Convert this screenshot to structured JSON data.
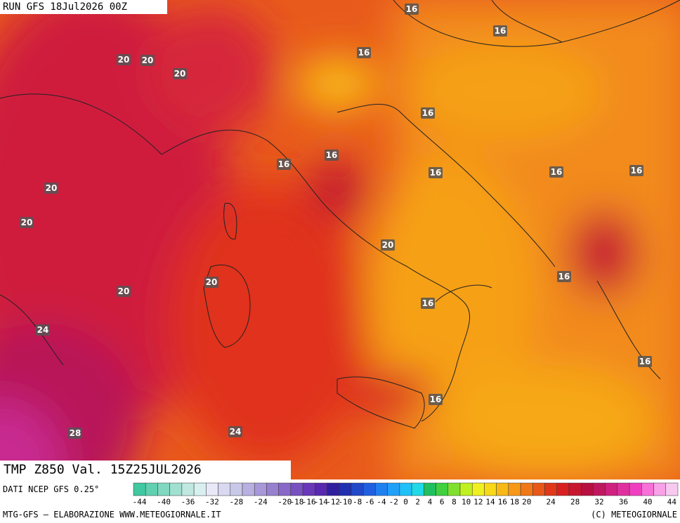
{
  "header": {
    "run": "RUN GFS 18Jul2026 00Z"
  },
  "title": "TMP Z850 Val. 15Z25JUL2026",
  "source": "DATI NCEP GFS 0.25°",
  "footer_left": "MTG-GFS — ELABORAZIONE WWW.METEOGIORNALE.IT",
  "footer_right": "(C) METEOGIORNALE",
  "contour_labels": [
    "16",
    "16",
    "16",
    "20",
    "20",
    "20",
    "16",
    "16",
    "16",
    "16",
    "16",
    "16",
    "20",
    "20",
    "20",
    "20",
    "16",
    "20",
    "16",
    "24",
    "16",
    "16",
    "28",
    "24"
  ],
  "colorbar": {
    "ticks": [
      -44,
      -40,
      -36,
      -32,
      -28,
      -24,
      -20,
      -18,
      -16,
      -14,
      -12,
      -10,
      -8,
      -6,
      -4,
      -2,
      0,
      2,
      4,
      6,
      8,
      10,
      12,
      14,
      16,
      18,
      20,
      24,
      28,
      32,
      36,
      40,
      44
    ],
    "colors": [
      "#40c8a0",
      "#60d0b0",
      "#80d8c0",
      "#a0e0d0",
      "#c0e8e0",
      "#d8f0f0",
      "#e8e8f8",
      "#d8d8f0",
      "#c8c8e8",
      "#b8b0e0",
      "#a898d8",
      "#9880d0",
      "#8868c8",
      "#7850c0",
      "#6838b8",
      "#5828b0",
      "#3020a0",
      "#2030b0",
      "#2048c8",
      "#2060e0",
      "#2080f0",
      "#20a0f8",
      "#20c0f8",
      "#20d8e8",
      "#20c060",
      "#40d040",
      "#80e030",
      "#c0f020",
      "#f0f020",
      "#f8d818",
      "#f8b818",
      "#f89818",
      "#f07818",
      "#e85818",
      "#e03818",
      "#d82020",
      "#c81830",
      "#b81040",
      "#c01860",
      "#d02080",
      "#e030a0",
      "#f040c0",
      "#f870d8",
      "#f8a0e8",
      "#f8c8f0"
    ]
  }
}
